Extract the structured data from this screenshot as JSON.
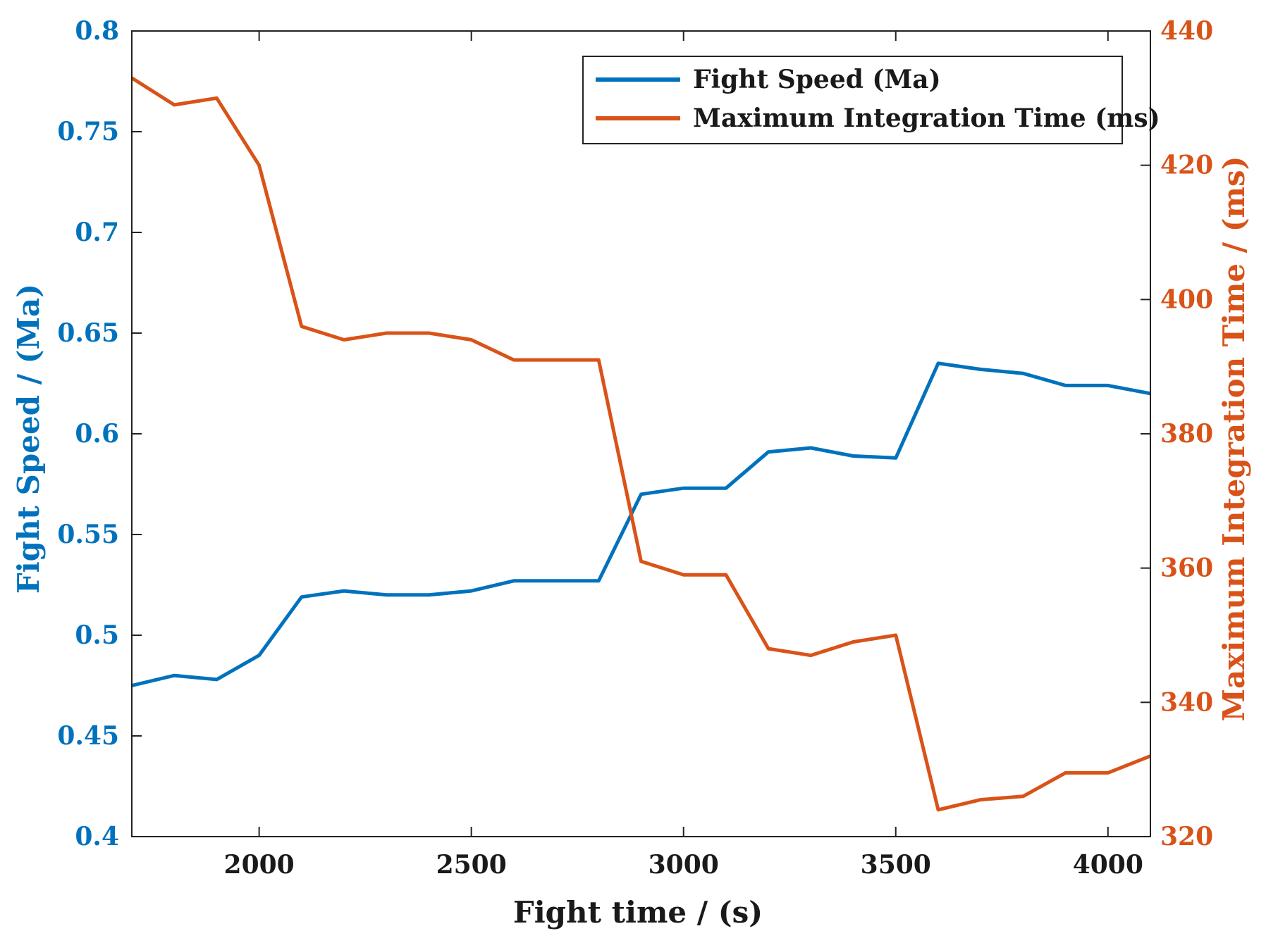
{
  "chart_data": {
    "type": "line",
    "xlabel": "Fight time / (s)",
    "ylabel_left": "Fight Speed / (Ma)",
    "ylabel_right": "Maximum Integration Time / (ms)",
    "xlim": [
      1700,
      4100
    ],
    "xticks": [
      2000,
      2500,
      3000,
      3500,
      4000
    ],
    "ylim_left": [
      0.4,
      0.8
    ],
    "yticks_left": [
      "0.4",
      "0.45",
      "0.5",
      "0.55",
      "0.6",
      "0.65",
      "0.7",
      "0.75",
      "0.8"
    ],
    "ylim_right": [
      320,
      440
    ],
    "yticks_right": [
      "320",
      "340",
      "360",
      "380",
      "400",
      "420",
      "440"
    ],
    "legend_position": "top-right",
    "x": [
      1700,
      1800,
      1900,
      2000,
      2100,
      2200,
      2300,
      2400,
      2500,
      2600,
      2700,
      2800,
      2900,
      3000,
      3100,
      3200,
      3300,
      3400,
      3500,
      3600,
      3700,
      3800,
      3900,
      4000,
      4100
    ],
    "series": [
      {
        "name": "Fight Speed (Ma)",
        "axis": "left",
        "color": "#0072BD",
        "values": [
          0.475,
          0.48,
          0.478,
          0.49,
          0.519,
          0.522,
          0.52,
          0.52,
          0.522,
          0.527,
          0.527,
          0.527,
          0.57,
          0.573,
          0.573,
          0.591,
          0.593,
          0.589,
          0.588,
          0.635,
          0.632,
          0.63,
          0.624,
          0.624,
          0.62
        ]
      },
      {
        "name": "Maximum Integration Time (ms)",
        "axis": "right",
        "color": "#D95319",
        "values": [
          433,
          429,
          430,
          420,
          396,
          394,
          395,
          395,
          394,
          391,
          391,
          391,
          361,
          359,
          359,
          348,
          347,
          349,
          350,
          324,
          325.5,
          326,
          329.5,
          329.5,
          332
        ]
      }
    ]
  }
}
